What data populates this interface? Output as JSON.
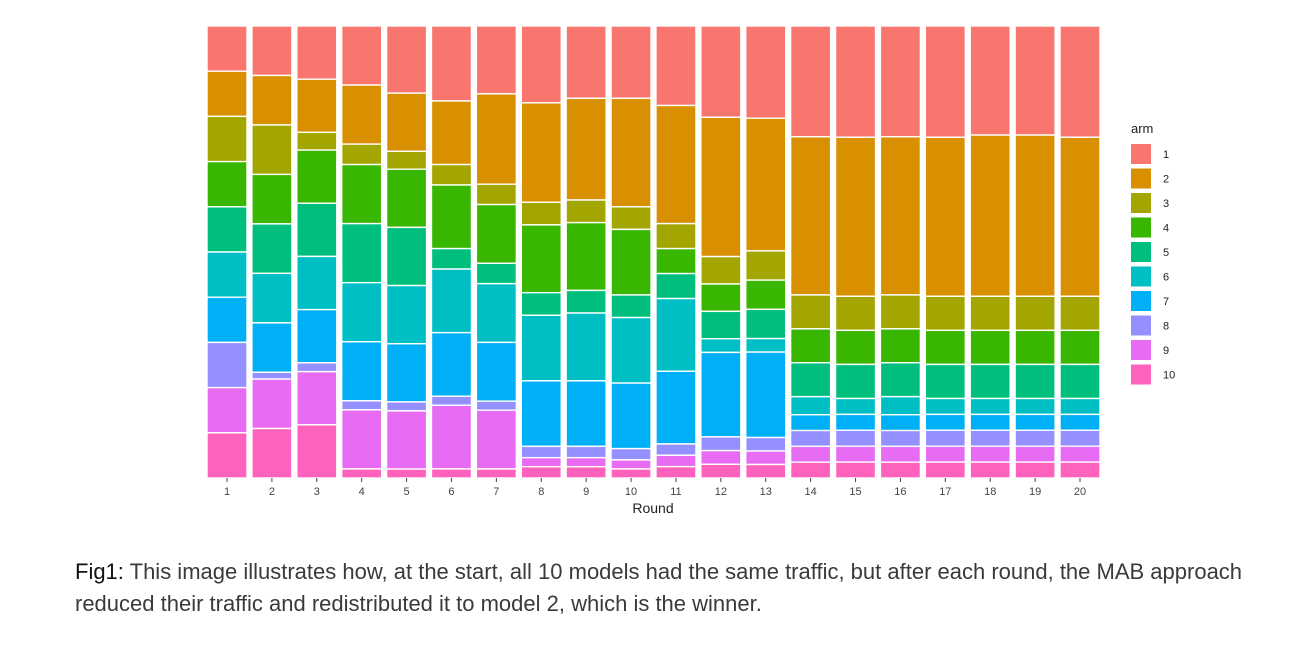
{
  "chart_data": {
    "type": "bar",
    "stacked": "fill",
    "title": "",
    "xlabel": "Round",
    "ylabel": "",
    "ylim": [
      0,
      1
    ],
    "grid": false,
    "legend": {
      "title": "arm",
      "position": "right"
    },
    "categories": [
      "1",
      "2",
      "3",
      "4",
      "5",
      "6",
      "7",
      "8",
      "9",
      "10",
      "11",
      "12",
      "13",
      "14",
      "15",
      "16",
      "17",
      "18",
      "19",
      "20"
    ],
    "series": [
      {
        "name": "1",
        "color": "#F8766D",
        "values": [
          0.1,
          0.11,
          0.12,
          0.13,
          0.15,
          0.165,
          0.15,
          0.17,
          0.16,
          0.16,
          0.175,
          0.2,
          0.205,
          0.245,
          0.245,
          0.245,
          0.245,
          0.24,
          0.24,
          0.245
        ]
      },
      {
        "name": "2",
        "color": "#D89000",
        "values": [
          0.1,
          0.11,
          0.12,
          0.13,
          0.13,
          0.14,
          0.2,
          0.22,
          0.225,
          0.24,
          0.26,
          0.305,
          0.295,
          0.35,
          0.35,
          0.35,
          0.35,
          0.355,
          0.355,
          0.35
        ]
      },
      {
        "name": "3",
        "color": "#A3A500",
        "values": [
          0.1,
          0.11,
          0.04,
          0.045,
          0.04,
          0.045,
          0.045,
          0.05,
          0.05,
          0.05,
          0.055,
          0.06,
          0.065,
          0.075,
          0.075,
          0.075,
          0.075,
          0.075,
          0.075,
          0.075
        ]
      },
      {
        "name": "4",
        "color": "#39B600",
        "values": [
          0.1,
          0.11,
          0.12,
          0.13,
          0.13,
          0.14,
          0.13,
          0.15,
          0.15,
          0.145,
          0.055,
          0.06,
          0.065,
          0.075,
          0.075,
          0.075,
          0.075,
          0.075,
          0.075,
          0.075
        ]
      },
      {
        "name": "5",
        "color": "#00BF7D",
        "values": [
          0.1,
          0.11,
          0.12,
          0.13,
          0.13,
          0.045,
          0.045,
          0.05,
          0.05,
          0.05,
          0.055,
          0.06,
          0.065,
          0.075,
          0.075,
          0.075,
          0.075,
          0.075,
          0.075,
          0.075
        ]
      },
      {
        "name": "6",
        "color": "#00BFC4",
        "values": [
          0.1,
          0.11,
          0.12,
          0.13,
          0.13,
          0.14,
          0.13,
          0.145,
          0.15,
          0.145,
          0.16,
          0.03,
          0.03,
          0.04,
          0.035,
          0.04,
          0.035,
          0.035,
          0.035,
          0.035
        ]
      },
      {
        "name": "7",
        "color": "#00B0F6",
        "values": [
          0.1,
          0.11,
          0.12,
          0.13,
          0.13,
          0.14,
          0.13,
          0.145,
          0.145,
          0.145,
          0.16,
          0.185,
          0.19,
          0.035,
          0.035,
          0.035,
          0.035,
          0.035,
          0.035,
          0.035
        ]
      },
      {
        "name": "8",
        "color": "#9590FF",
        "values": [
          0.1,
          0.015,
          0.02,
          0.02,
          0.02,
          0.02,
          0.02,
          0.025,
          0.025,
          0.025,
          0.025,
          0.03,
          0.03,
          0.035,
          0.035,
          0.035,
          0.035,
          0.035,
          0.035,
          0.035
        ]
      },
      {
        "name": "9",
        "color": "#E76BF3",
        "values": [
          0.1,
          0.11,
          0.12,
          0.13,
          0.13,
          0.14,
          0.13,
          0.02,
          0.02,
          0.02,
          0.025,
          0.03,
          0.03,
          0.035,
          0.035,
          0.035,
          0.035,
          0.035,
          0.035,
          0.035
        ]
      },
      {
        "name": "10",
        "color": "#FF62BC",
        "values": [
          0.1,
          0.11,
          0.12,
          0.02,
          0.02,
          0.02,
          0.02,
          0.025,
          0.025,
          0.02,
          0.025,
          0.03,
          0.03,
          0.035,
          0.035,
          0.035,
          0.035,
          0.035,
          0.035,
          0.035
        ]
      }
    ]
  },
  "caption": {
    "label": "Fig1:",
    "text": " This image illustrates how, at the start, all 10 models had the same traffic, but after each round, the MAB approach reduced their traffic and redistributed it to model 2, which is the winner."
  }
}
